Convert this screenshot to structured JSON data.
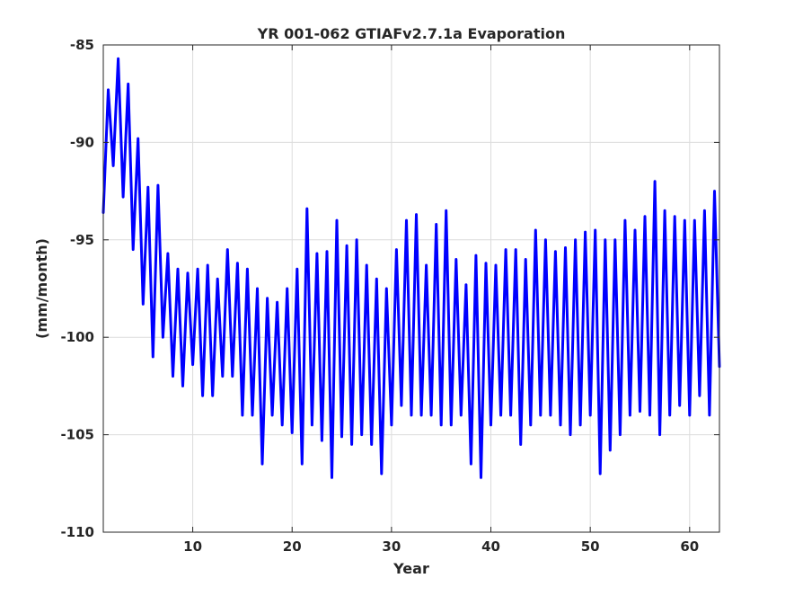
{
  "chart_data": {
    "type": "line",
    "title": "YR 001-062 GTIAFv2.7.1a Evaporation",
    "xlabel": "Year",
    "ylabel": "(mm/month)",
    "xlim": [
      1,
      63
    ],
    "ylim": [
      -110,
      -85
    ],
    "xticks": [
      10,
      20,
      30,
      40,
      50,
      60
    ],
    "yticks": [
      -85,
      -90,
      -95,
      -100,
      -105,
      -110
    ],
    "grid": true,
    "series": [
      {
        "color": "#0000ff",
        "x": [
          1.0,
          1.5,
          2.0,
          2.5,
          3.0,
          3.5,
          4.0,
          4.5,
          5.0,
          5.5,
          6.0,
          6.5,
          7.0,
          7.5,
          8.0,
          8.5,
          9.0,
          9.5,
          10.0,
          10.5,
          11.0,
          11.5,
          12.0,
          12.5,
          13.0,
          13.5,
          14.0,
          14.5,
          15.0,
          15.5,
          16.0,
          16.5,
          17.0,
          17.5,
          18.0,
          18.5,
          19.0,
          19.5,
          20.0,
          20.5,
          21.0,
          21.5,
          22.0,
          22.5,
          23.0,
          23.5,
          24.0,
          24.5,
          25.0,
          25.5,
          26.0,
          26.5,
          27.0,
          27.5,
          28.0,
          28.5,
          29.0,
          29.5,
          30.0,
          30.5,
          31.0,
          31.5,
          32.0,
          32.5,
          33.0,
          33.5,
          34.0,
          34.5,
          35.0,
          35.5,
          36.0,
          36.5,
          37.0,
          37.5,
          38.0,
          38.5,
          39.0,
          39.5,
          40.0,
          40.5,
          41.0,
          41.5,
          42.0,
          42.5,
          43.0,
          43.5,
          44.0,
          44.5,
          45.0,
          45.5,
          46.0,
          46.5,
          47.0,
          47.5,
          48.0,
          48.5,
          49.0,
          49.5,
          50.0,
          50.5,
          51.0,
          51.5,
          52.0,
          52.5,
          53.0,
          53.5,
          54.0,
          54.5,
          55.0,
          55.5,
          56.0,
          56.5,
          57.0,
          57.5,
          58.0,
          58.5,
          59.0,
          59.5,
          60.0,
          60.5,
          61.0,
          61.5,
          62.0,
          62.5,
          63.0
        ],
        "y": [
          -93.6,
          -87.3,
          -91.2,
          -85.7,
          -92.8,
          -87.0,
          -95.5,
          -89.8,
          -98.3,
          -92.3,
          -101.0,
          -92.2,
          -100.0,
          -95.7,
          -102.0,
          -96.5,
          -102.5,
          -96.7,
          -101.4,
          -96.5,
          -103.0,
          -96.3,
          -103.0,
          -97.0,
          -102.0,
          -95.5,
          -102.0,
          -96.2,
          -104.0,
          -96.5,
          -104.0,
          -97.5,
          -106.5,
          -98.0,
          -104.0,
          -98.2,
          -104.5,
          -97.5,
          -104.9,
          -96.5,
          -106.5,
          -93.4,
          -104.5,
          -95.7,
          -105.3,
          -95.6,
          -107.2,
          -94.0,
          -105.1,
          -95.3,
          -105.5,
          -95.0,
          -105.0,
          -96.3,
          -105.5,
          -97.0,
          -107.0,
          -97.5,
          -104.5,
          -95.5,
          -103.5,
          -94.0,
          -104.0,
          -93.7,
          -104.0,
          -96.3,
          -104.0,
          -94.2,
          -104.5,
          -93.5,
          -104.5,
          -96.0,
          -104.0,
          -97.3,
          -106.5,
          -95.8,
          -107.2,
          -96.2,
          -104.5,
          -96.3,
          -104.0,
          -95.5,
          -104.0,
          -95.5,
          -105.5,
          -96.0,
          -104.5,
          -94.5,
          -104.0,
          -95.0,
          -104.0,
          -95.6,
          -104.5,
          -95.4,
          -105.0,
          -95.0,
          -104.5,
          -94.6,
          -104.0,
          -94.5,
          -107.0,
          -95.0,
          -105.8,
          -95.0,
          -105.0,
          -94.0,
          -104.0,
          -94.5,
          -103.8,
          -93.8,
          -104.0,
          -92.0,
          -105.0,
          -93.5,
          -104.0,
          -93.8,
          -103.5,
          -94.0,
          -104.0,
          -94.0,
          -103.0,
          -93.5,
          -104.0,
          -92.5,
          -101.5
        ]
      }
    ]
  }
}
